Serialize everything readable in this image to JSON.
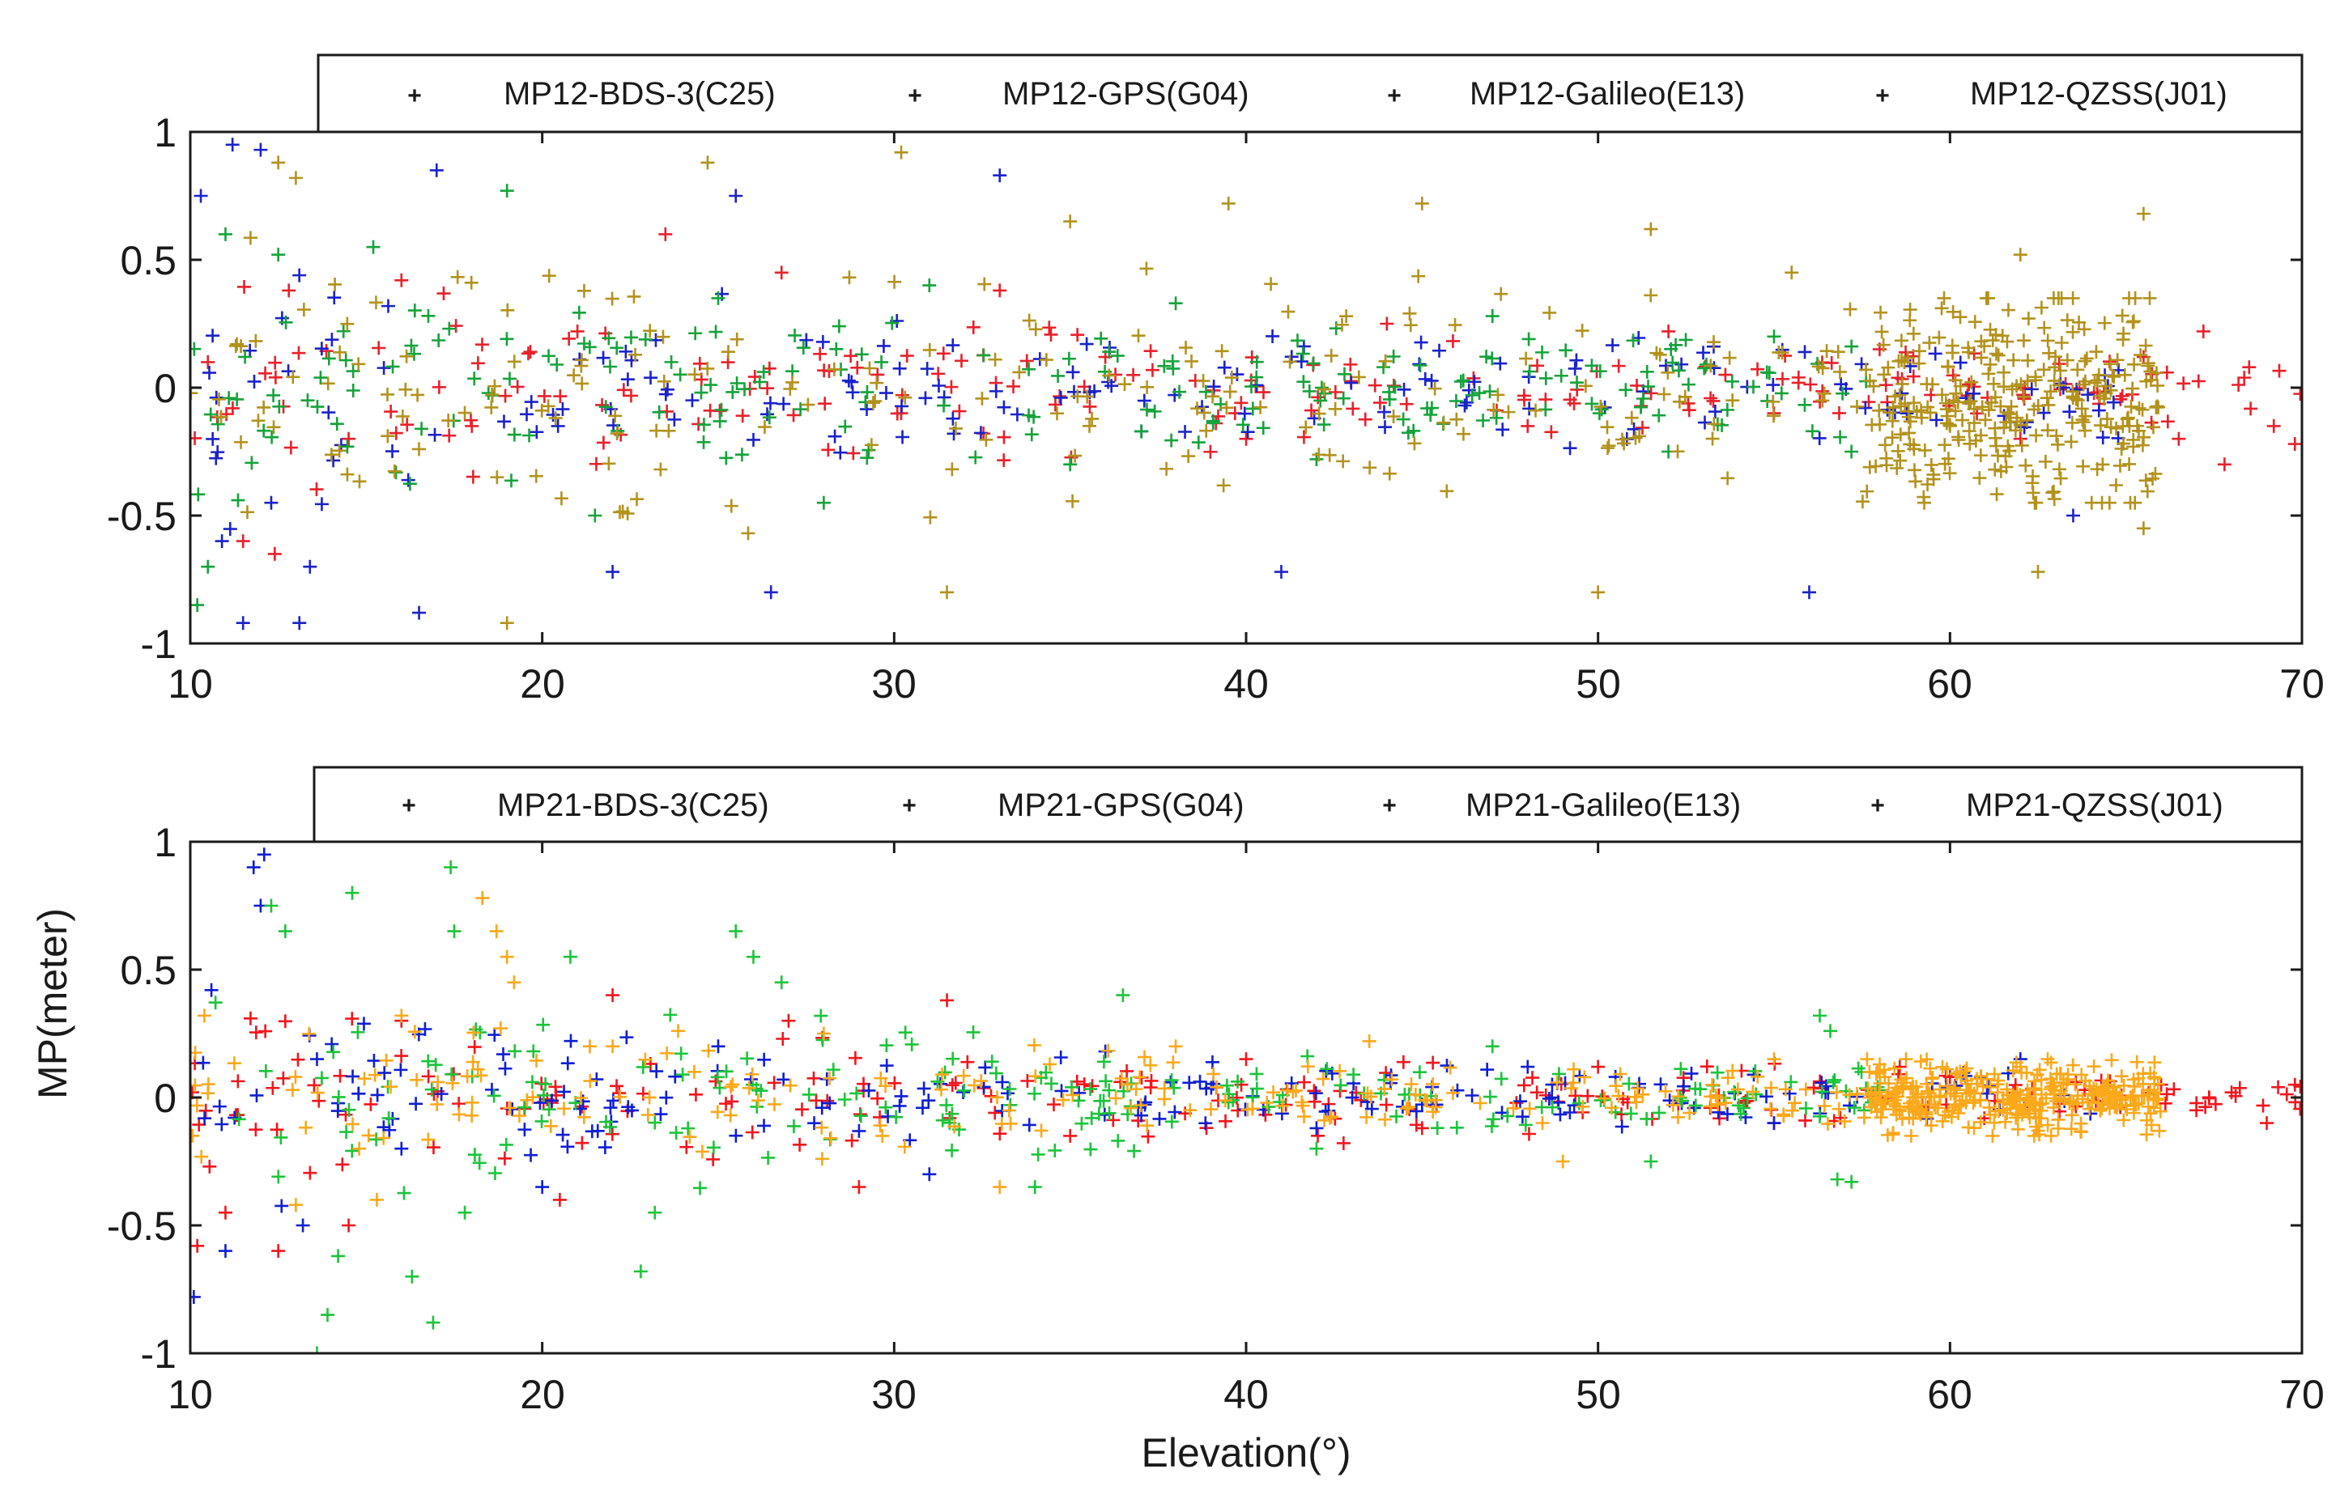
{
  "chart_data": [
    {
      "type": "scatter",
      "marker": "plus",
      "title": "",
      "xlabel": "",
      "ylabel": "",
      "xlim": [
        10,
        70
      ],
      "ylim": [
        -1,
        1
      ],
      "xticks": [
        "10",
        "20",
        "30",
        "40",
        "50",
        "60",
        "70"
      ],
      "yticks": [
        "1",
        "0.5",
        "0",
        "-0.5",
        "-1"
      ],
      "legend_position": "top, outside plot area",
      "series": [
        {
          "name": "MP12-BDS-3(C25)",
          "color": "#e8212a",
          "x_range": [
            10,
            70
          ],
          "envelope": [
            [
              10,
              0.45
            ],
            [
              20,
              0.35
            ],
            [
              30,
              0.3
            ],
            [
              40,
              0.25
            ],
            [
              50,
              0.2
            ],
            [
              60,
              0.15
            ],
            [
              70,
              0.15
            ]
          ],
          "points": [
            [
              10.5,
              0.1
            ],
            [
              11.5,
              -0.6
            ],
            [
              12.4,
              -0.65
            ],
            [
              12.8,
              0.38
            ],
            [
              14.5,
              -0.2
            ],
            [
              16,
              0.42
            ],
            [
              18,
              -0.15
            ],
            [
              21,
              0.22
            ],
            [
              23.5,
              0.6
            ],
            [
              26.8,
              0.45
            ],
            [
              30.2,
              -0.1
            ],
            [
              33,
              0.38
            ],
            [
              36,
              0.12
            ],
            [
              40,
              -0.2
            ],
            [
              44,
              0.25
            ],
            [
              48,
              -0.15
            ],
            [
              52,
              0.22
            ],
            [
              55,
              -0.1
            ],
            [
              58,
              0.15
            ],
            [
              62,
              -0.2
            ],
            [
              65.5,
              0.12
            ],
            [
              66.5,
              -0.2
            ],
            [
              67.2,
              0.22
            ],
            [
              67.8,
              -0.3
            ],
            [
              68.5,
              0.08
            ],
            [
              69.2,
              -0.15
            ],
            [
              69.8,
              -0.22
            ]
          ]
        },
        {
          "name": "MP12-GPS(G04)",
          "color": "#1a22c9",
          "x_range": [
            10,
            65
          ],
          "envelope": [
            [
              10,
              0.95
            ],
            [
              15,
              0.6
            ],
            [
              20,
              0.45
            ],
            [
              30,
              0.35
            ],
            [
              40,
              0.3
            ],
            [
              50,
              0.25
            ],
            [
              60,
              0.2
            ],
            [
              65,
              0.2
            ]
          ],
          "points": [
            [
              10.3,
              0.75
            ],
            [
              10.9,
              -0.6
            ],
            [
              11.2,
              0.95
            ],
            [
              11.5,
              -0.92
            ],
            [
              12,
              0.93
            ],
            [
              12.3,
              -0.45
            ],
            [
              13.1,
              -0.92
            ],
            [
              13.4,
              -0.7
            ],
            [
              16.5,
              -0.88
            ],
            [
              17,
              0.85
            ],
            [
              22,
              -0.72
            ],
            [
              25.5,
              0.75
            ],
            [
              26.5,
              -0.8
            ],
            [
              33,
              0.83
            ],
            [
              41,
              -0.72
            ],
            [
              56,
              -0.8
            ],
            [
              63.5,
              -0.5
            ]
          ]
        },
        {
          "name": "MP12-Galileo(E13)",
          "color": "#14a33a",
          "x_range": [
            10,
            58
          ],
          "envelope": [
            [
              10,
              0.7
            ],
            [
              20,
              0.4
            ],
            [
              30,
              0.3
            ],
            [
              40,
              0.25
            ],
            [
              50,
              0.2
            ],
            [
              58,
              0.2
            ]
          ],
          "points": [
            [
              10.2,
              -0.85
            ],
            [
              10.5,
              -0.7
            ],
            [
              11,
              0.6
            ],
            [
              12.5,
              0.52
            ],
            [
              15.2,
              0.55
            ],
            [
              19,
              0.77
            ],
            [
              21.5,
              -0.5
            ],
            [
              25,
              0.35
            ],
            [
              28,
              -0.45
            ],
            [
              31,
              0.4
            ],
            [
              35,
              -0.3
            ],
            [
              38,
              0.33
            ],
            [
              42,
              -0.28
            ],
            [
              47,
              0.28
            ],
            [
              52,
              -0.25
            ],
            [
              55,
              0.2
            ],
            [
              57.2,
              -0.25
            ]
          ]
        },
        {
          "name": "MP12-QZSS(J01)",
          "color": "#b3921c",
          "x_range": [
            10,
            66
          ],
          "envelope": [
            [
              10,
              0.7
            ],
            [
              20,
              0.6
            ],
            [
              30,
              0.55
            ],
            [
              40,
              0.5
            ],
            [
              50,
              0.45
            ],
            [
              57,
              0.4
            ],
            [
              58,
              0.35
            ],
            [
              66,
              0.35
            ]
          ],
          "points": [
            [
              12.5,
              0.88
            ],
            [
              13,
              0.82
            ],
            [
              19,
              -0.92
            ],
            [
              24.7,
              0.88
            ],
            [
              30.2,
              0.92
            ],
            [
              31.5,
              -0.8
            ],
            [
              35,
              0.65
            ],
            [
              39.5,
              0.72
            ],
            [
              45,
              0.72
            ],
            [
              50,
              -0.8
            ],
            [
              51.5,
              0.62
            ],
            [
              55.5,
              0.45
            ],
            [
              62,
              0.52
            ],
            [
              62.5,
              -0.72
            ],
            [
              65.5,
              0.68
            ],
            [
              65.5,
              -0.55
            ]
          ],
          "dense_cluster": {
            "x_range": [
              57.5,
              66
            ],
            "y_range": [
              -0.45,
              0.35
            ]
          }
        }
      ]
    },
    {
      "type": "scatter",
      "marker": "plus",
      "title": "",
      "xlabel": "Elevation(°)",
      "ylabel": "MP(meter)",
      "xlim": [
        10,
        70
      ],
      "ylim": [
        -1,
        1
      ],
      "xticks": [
        "10",
        "20",
        "30",
        "40",
        "50",
        "60",
        "70"
      ],
      "yticks": [
        "1",
        "0.5",
        "0",
        "-0.5",
        "-1"
      ],
      "legend_position": "top, outside plot area",
      "series": [
        {
          "name": "MP21-BDS-3(C25)",
          "color": "#f2161c",
          "x_range": [
            10,
            70
          ],
          "envelope": [
            [
              10,
              0.45
            ],
            [
              20,
              0.35
            ],
            [
              30,
              0.25
            ],
            [
              40,
              0.2
            ],
            [
              50,
              0.15
            ],
            [
              60,
              0.12
            ],
            [
              70,
              0.1
            ]
          ],
          "points": [
            [
              10.2,
              -0.58
            ],
            [
              11,
              -0.45
            ],
            [
              12.5,
              -0.6
            ],
            [
              14.5,
              -0.5
            ],
            [
              16,
              0.3
            ],
            [
              20.5,
              -0.4
            ],
            [
              22,
              0.4
            ],
            [
              27,
              0.3
            ],
            [
              29,
              -0.35
            ],
            [
              31.5,
              0.38
            ],
            [
              35,
              -0.15
            ],
            [
              40,
              0.15
            ],
            [
              45,
              -0.12
            ],
            [
              50,
              0.12
            ],
            [
              55,
              -0.1
            ],
            [
              60,
              0.08
            ],
            [
              66,
              0.05
            ],
            [
              67,
              -0.05
            ],
            [
              68,
              0.02
            ],
            [
              69,
              -0.1
            ],
            [
              69.8,
              0.05
            ]
          ]
        },
        {
          "name": "MP21-GPS(G04)",
          "color": "#0f1fd2",
          "x_range": [
            10,
            64
          ],
          "envelope": [
            [
              10,
              0.45
            ],
            [
              13,
              0.45
            ],
            [
              15,
              0.3
            ],
            [
              20,
              0.25
            ],
            [
              30,
              0.2
            ],
            [
              40,
              0.15
            ],
            [
              50,
              0.12
            ],
            [
              60,
              0.1
            ],
            [
              64,
              0.1
            ]
          ],
          "points": [
            [
              10.1,
              -0.78
            ],
            [
              10.6,
              0.42
            ],
            [
              11,
              -0.6
            ],
            [
              11.8,
              0.9
            ],
            [
              12.1,
              0.95
            ],
            [
              12,
              0.75
            ],
            [
              13.2,
              -0.5
            ],
            [
              13.6,
              0.15
            ],
            [
              16,
              -0.2
            ],
            [
              20,
              -0.35
            ],
            [
              25,
              0.2
            ],
            [
              31,
              -0.3
            ],
            [
              36,
              0.18
            ],
            [
              42,
              -0.12
            ],
            [
              48,
              0.12
            ],
            [
              55,
              -0.1
            ],
            [
              62,
              0.15
            ]
          ]
        },
        {
          "name": "MP21-Galileo(E13)",
          "color": "#1bc43a",
          "x_range": [
            10,
            58
          ],
          "envelope": [
            [
              10,
              0.45
            ],
            [
              20,
              0.4
            ],
            [
              30,
              0.3
            ],
            [
              40,
              0.2
            ],
            [
              50,
              0.15
            ],
            [
              58,
              0.12
            ]
          ],
          "points": [
            [
              12.3,
              0.75
            ],
            [
              12.7,
              0.65
            ],
            [
              13.6,
              -1.0
            ],
            [
              13.9,
              -0.85
            ],
            [
              14.2,
              -0.62
            ],
            [
              14.6,
              0.8
            ],
            [
              16.9,
              -0.88
            ],
            [
              16.3,
              -0.7
            ],
            [
              17.4,
              0.9
            ],
            [
              17.5,
              0.65
            ],
            [
              17.8,
              -0.45
            ],
            [
              20.8,
              0.55
            ],
            [
              22.8,
              -0.68
            ],
            [
              23.2,
              -0.45
            ],
            [
              25.5,
              0.65
            ],
            [
              26,
              0.55
            ],
            [
              26.8,
              0.45
            ],
            [
              34,
              -0.35
            ],
            [
              36.5,
              0.4
            ],
            [
              42,
              -0.2
            ],
            [
              47,
              0.2
            ],
            [
              51.5,
              -0.25
            ],
            [
              56.3,
              0.32
            ],
            [
              56.6,
              0.26
            ],
            [
              56.8,
              -0.32
            ],
            [
              57.2,
              -0.33
            ]
          ]
        },
        {
          "name": "MP21-QZSS(J01)",
          "color": "#fba81a",
          "x_range": [
            10,
            66
          ],
          "envelope": [
            [
              10,
              0.35
            ],
            [
              20,
              0.3
            ],
            [
              30,
              0.25
            ],
            [
              40,
              0.15
            ],
            [
              50,
              0.12
            ],
            [
              60,
              0.1
            ],
            [
              66,
              0.1
            ]
          ],
          "points": [
            [
              10.4,
              0.32
            ],
            [
              13,
              -0.42
            ],
            [
              14.8,
              -0.2
            ],
            [
              15.3,
              -0.4
            ],
            [
              16,
              0.32
            ],
            [
              18.3,
              0.78
            ],
            [
              18.7,
              0.65
            ],
            [
              19,
              0.55
            ],
            [
              19.2,
              0.45
            ],
            [
              22,
              0.2
            ],
            [
              28,
              0.25
            ],
            [
              33,
              -0.35
            ],
            [
              38,
              0.2
            ],
            [
              43.5,
              0.22
            ],
            [
              49,
              -0.25
            ],
            [
              55,
              0.15
            ],
            [
              58,
              0.1
            ],
            [
              62,
              0.12
            ],
            [
              65.8,
              0.08
            ]
          ],
          "dense_cluster": {
            "x_range": [
              57.5,
              66
            ],
            "y_range": [
              -0.15,
              0.15
            ]
          }
        }
      ]
    }
  ]
}
